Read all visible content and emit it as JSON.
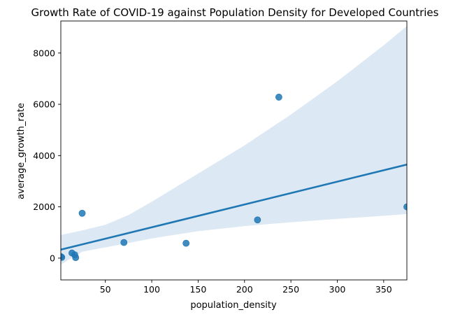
{
  "chart_data": {
    "type": "scatter",
    "title": "Growth Rate of COVID-19 against Population Density for Developed Countries",
    "xlabel": "population_density",
    "ylabel": "average_growth_rate",
    "xlim": [
      2,
      375
    ],
    "ylim": [
      -850,
      9250
    ],
    "xticks": [
      50,
      100,
      150,
      200,
      250,
      300,
      350
    ],
    "yticks": [
      0,
      2000,
      4000,
      6000,
      8000
    ],
    "grid": false,
    "colors": {
      "points": "#1f77b4",
      "regression_line": "#1f77b4",
      "confidence_band": "#dce8f3"
    },
    "points": [
      {
        "x": 2,
        "y": 60
      },
      {
        "x": 3,
        "y": 30
      },
      {
        "x": 14,
        "y": 200
      },
      {
        "x": 17,
        "y": 130
      },
      {
        "x": 18,
        "y": 20
      },
      {
        "x": 25,
        "y": 1750
      },
      {
        "x": 70,
        "y": 610
      },
      {
        "x": 137,
        "y": 580
      },
      {
        "x": 214,
        "y": 1490
      },
      {
        "x": 237,
        "y": 6280
      },
      {
        "x": 375,
        "y": 2000
      }
    ],
    "regression_line": {
      "x": [
        2,
        375
      ],
      "y": [
        330,
        3650
      ]
    },
    "confidence_band": {
      "x": [
        2,
        25,
        50,
        75,
        100,
        150,
        200,
        250,
        300,
        350,
        375
      ],
      "upper": [
        900,
        1080,
        1300,
        1680,
        2200,
        3300,
        4400,
        5600,
        6900,
        8300,
        9050
      ],
      "lower": [
        -250,
        250,
        420,
        590,
        770,
        1050,
        1250,
        1400,
        1530,
        1650,
        1720
      ]
    }
  }
}
